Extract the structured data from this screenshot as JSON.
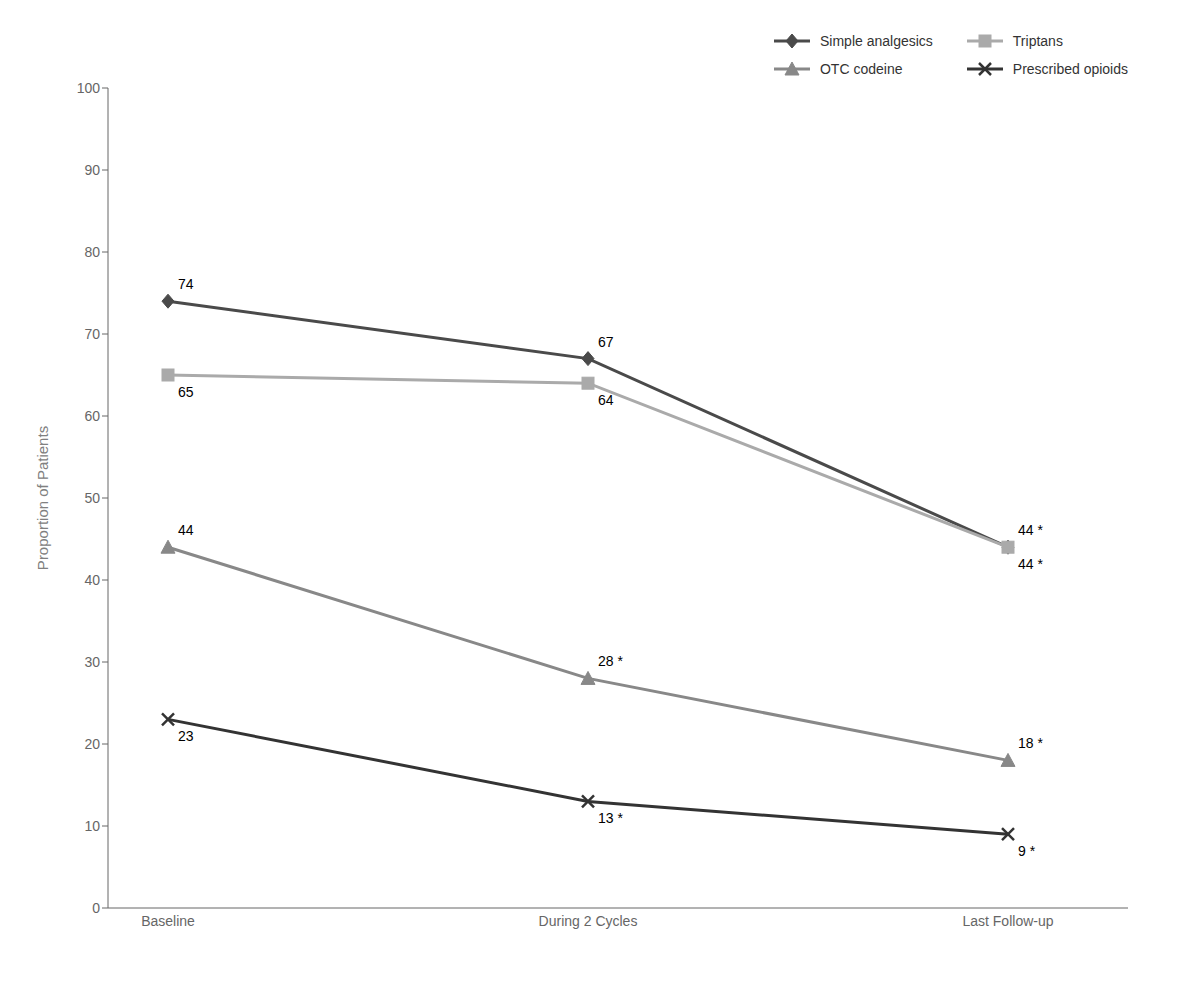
{
  "chart_data": {
    "type": "line",
    "categories": [
      "Baseline",
      "During 2 Cycles",
      "Last Follow-up"
    ],
    "y_label": "Proportion of Patients",
    "series": [
      {
        "name": "Simple analgesics",
        "color": "#4a4a4a",
        "marker": "diamond",
        "values": [
          74,
          67,
          44
        ],
        "value_labels": [
          "74",
          "67",
          "44 *"
        ]
      },
      {
        "name": "Triptans",
        "color": "#aaaaaa",
        "marker": "square",
        "values": [
          65,
          64,
          44
        ],
        "value_labels": [
          "65",
          "64",
          "44 *"
        ]
      },
      {
        "name": "OTC codeine",
        "color": "#888888",
        "marker": "triangle",
        "values": [
          44,
          28,
          18
        ],
        "value_labels": [
          "44",
          "28 *",
          "18 *"
        ]
      },
      {
        "name": "Prescribed opioids",
        "color": "#333333",
        "marker": "x",
        "values": [
          23,
          13,
          9
        ],
        "value_labels": [
          "23",
          "13 *",
          "9 *"
        ]
      }
    ],
    "ylim": [
      0,
      100
    ],
    "yticks": [
      0,
      10,
      20,
      30,
      40,
      50,
      60,
      70,
      80,
      90,
      100
    ],
    "grid": false,
    "legend": "upper right",
    "data_labels": true
  }
}
